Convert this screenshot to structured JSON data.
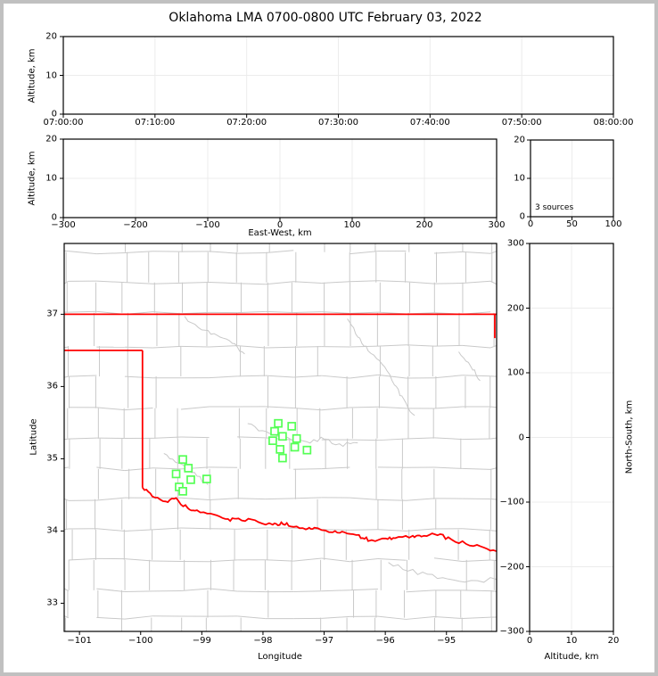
{
  "title": "Oklahoma LMA 0700-0800 UTC February 03, 2022",
  "colors": {
    "state_border": "#ff0000",
    "stations": "#55ff55",
    "counties": "#c9c9c9",
    "grid": "#ececec",
    "frame": "#c0c0c0",
    "spine": "#000000"
  },
  "chart_data": {
    "type": "scatter",
    "title": "Oklahoma LMA 0700-0800 UTC February 03, 2022",
    "source_count": 3,
    "panels": [
      {
        "id": "time_height",
        "xlabel": "",
        "ylabel": "Altitude, km",
        "x_ticks": [
          "07:00:00",
          "07:10:00",
          "07:20:00",
          "07:30:00",
          "07:40:00",
          "07:50:00",
          "08:00:00"
        ],
        "y_ticks": [
          0,
          10,
          20
        ],
        "ylim": [
          0,
          20
        ],
        "points": []
      },
      {
        "id": "ew_height",
        "xlabel": "East-West, km",
        "ylabel": "Altitude, km",
        "x_ticks": [
          -300,
          -200,
          -100,
          0,
          100,
          200,
          300
        ],
        "y_ticks": [
          0,
          10,
          20
        ],
        "xlim": [
          -300,
          300
        ],
        "ylim": [
          0,
          20
        ],
        "points": []
      },
      {
        "id": "altitude_histogram",
        "xlabel": "",
        "ylabel": "",
        "annotation": "3 sources",
        "x_ticks": [
          0,
          50,
          100
        ],
        "y_ticks": [
          0,
          10,
          20
        ],
        "xlim": [
          0,
          100
        ],
        "ylim": [
          0,
          20
        ],
        "points": []
      },
      {
        "id": "plan_view_map",
        "xlabel": "Longitude",
        "ylabel": "Latitude",
        "x_ticks": [
          -101,
          -100,
          -99,
          -98,
          -97,
          -96,
          -95
        ],
        "y_ticks": [
          33,
          34,
          35,
          36,
          37
        ],
        "xlim": [
          -101.25,
          -94.18
        ],
        "ylim": [
          32.61,
          37.98
        ]
      },
      {
        "id": "ns_height",
        "xlabel": "Altitude, km",
        "ylabel": "North-South, km",
        "x_ticks": [
          0,
          10,
          20
        ],
        "y_ticks": [
          -300,
          -200,
          -100,
          0,
          100,
          200,
          300
        ],
        "xlim": [
          0,
          20
        ],
        "ylim": [
          -300,
          300
        ],
        "points": []
      }
    ],
    "stations": [
      [
        -99.31,
        34.99
      ],
      [
        -99.22,
        34.87
      ],
      [
        -99.42,
        34.79
      ],
      [
        -99.18,
        34.71
      ],
      [
        -98.92,
        34.72
      ],
      [
        -99.37,
        34.61
      ],
      [
        -99.31,
        34.55
      ],
      [
        -97.75,
        35.49
      ],
      [
        -97.53,
        35.45
      ],
      [
        -97.81,
        35.38
      ],
      [
        -97.68,
        35.31
      ],
      [
        -97.45,
        35.28
      ],
      [
        -97.84,
        35.25
      ],
      [
        -97.72,
        35.13
      ],
      [
        -97.48,
        35.16
      ],
      [
        -97.28,
        35.12
      ],
      [
        -97.68,
        35.01
      ]
    ],
    "state_border": {
      "north_lat": 37.0,
      "panhandle_south_lat": 36.5,
      "panhandle_east_lon": -99.97,
      "east_segment": [
        [
          -94.21,
          37.0
        ],
        [
          -94.21,
          36.67
        ]
      ],
      "red_river": [
        [
          -99.97,
          34.6
        ],
        [
          -99.81,
          34.5
        ],
        [
          -99.59,
          34.41
        ],
        [
          -99.42,
          34.44
        ],
        [
          -99.23,
          34.31
        ],
        [
          -99.08,
          34.27
        ],
        [
          -98.8,
          34.21
        ],
        [
          -98.57,
          34.16
        ],
        [
          -98.4,
          34.17
        ],
        [
          -98.13,
          34.14
        ],
        [
          -97.84,
          34.09
        ],
        [
          -97.7,
          34.11
        ],
        [
          -97.55,
          34.07
        ],
        [
          -97.3,
          34.02
        ],
        [
          -97.16,
          34.04
        ],
        [
          -96.86,
          33.98
        ],
        [
          -96.67,
          33.97
        ],
        [
          -96.43,
          33.92
        ],
        [
          -96.28,
          33.88
        ],
        [
          -95.99,
          33.89
        ],
        [
          -95.84,
          33.92
        ],
        [
          -95.55,
          33.92
        ],
        [
          -95.41,
          33.94
        ],
        [
          -95.19,
          33.96
        ],
        [
          -94.97,
          33.9
        ],
        [
          -94.68,
          33.82
        ],
        [
          -94.38,
          33.76
        ],
        [
          -94.14,
          33.7
        ]
      ]
    }
  }
}
